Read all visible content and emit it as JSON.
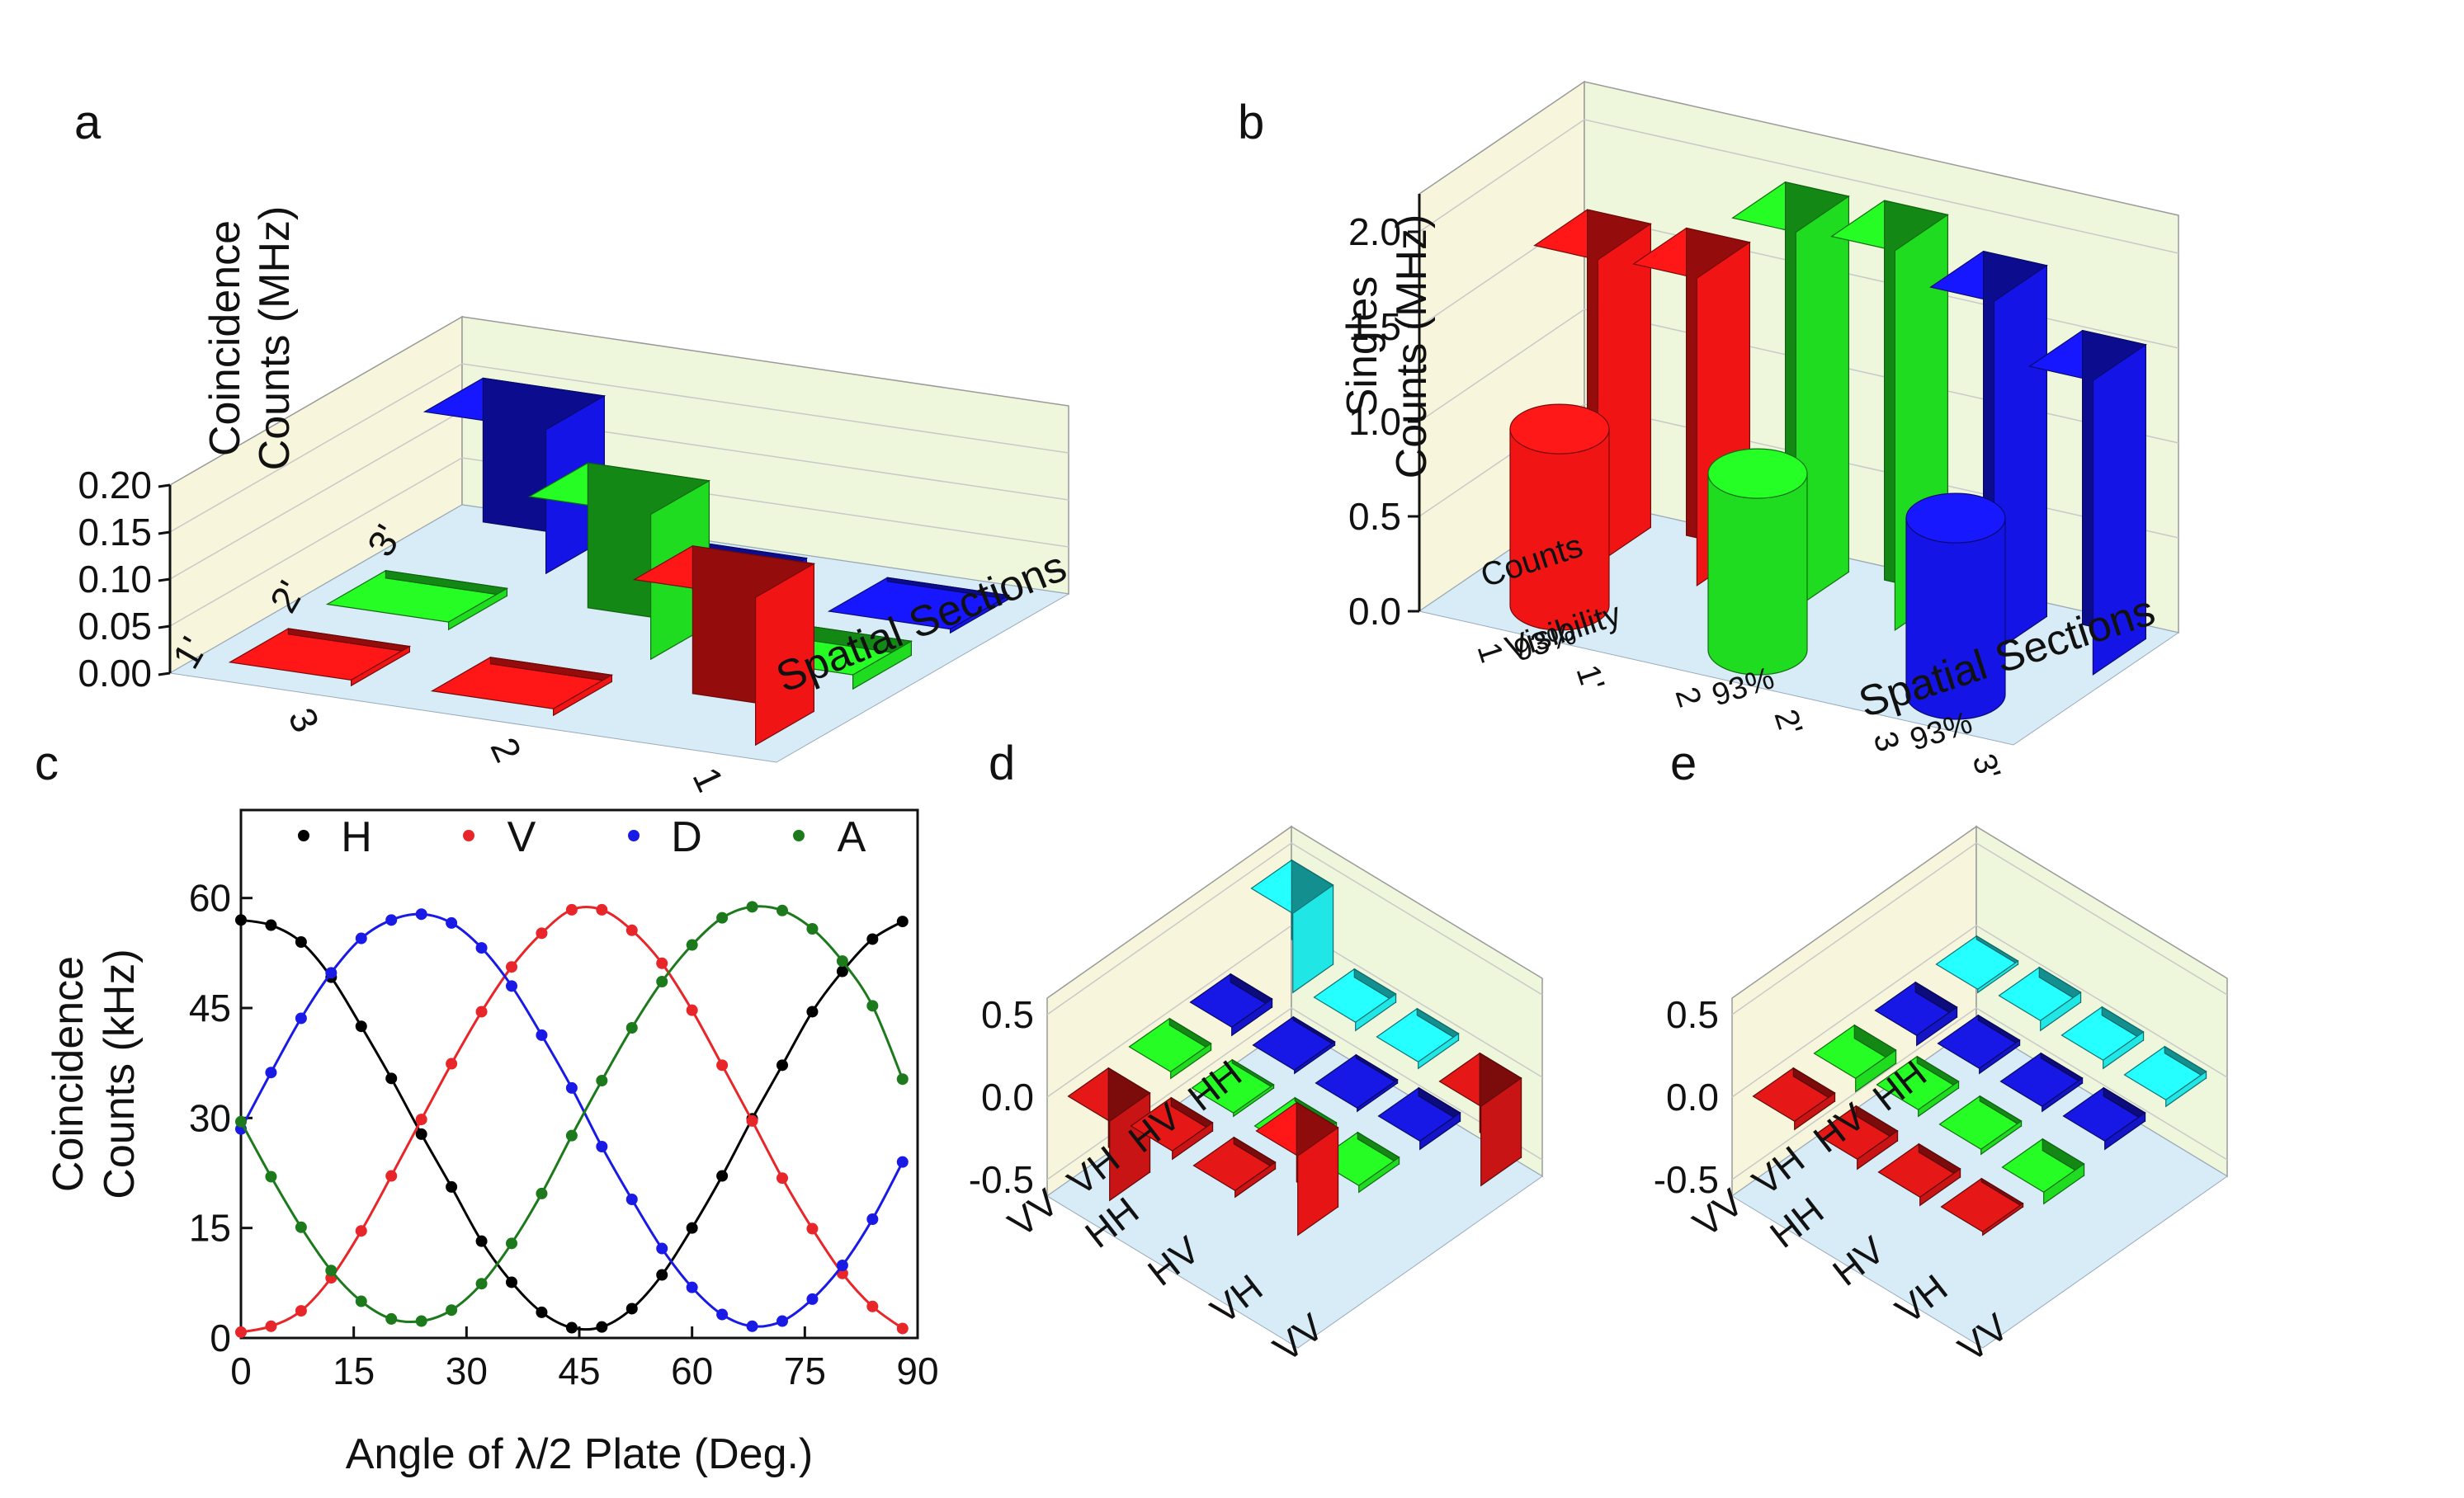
{
  "panel_labels": [
    "a",
    "b",
    "c",
    "d",
    "e"
  ],
  "chart_data": [
    {
      "panel": "a",
      "type": "bar3d",
      "zlabel_line1": "Coincidence",
      "zlabel_line2": "Counts (MHz)",
      "xlabel": "Spatial Sections",
      "zticks": [
        "0.00",
        "0.05",
        "0.10",
        "0.15",
        "0.20"
      ],
      "zlim": [
        0,
        0.2
      ],
      "x_categories": [
        "1",
        "2",
        "3"
      ],
      "y_categories": [
        "3'",
        "2'",
        "1'"
      ],
      "bars": [
        {
          "x": "3",
          "y": "3'",
          "value": 0.153,
          "color": "#1414e6"
        },
        {
          "x": "2",
          "y": "3'",
          "value": 0.012,
          "color": "#1414e6"
        },
        {
          "x": "1",
          "y": "3'",
          "value": 0.004,
          "color": "#1414e6"
        },
        {
          "x": "3",
          "y": "2'",
          "value": 0.008,
          "color": "#20dc20"
        },
        {
          "x": "2",
          "y": "2'",
          "value": 0.154,
          "color": "#20dc20"
        },
        {
          "x": "1",
          "y": "2'",
          "value": 0.015,
          "color": "#20dc20"
        },
        {
          "x": "3",
          "y": "1'",
          "value": 0.006,
          "color": "#f01414"
        },
        {
          "x": "2",
          "y": "1'",
          "value": 0.007,
          "color": "#f01414"
        },
        {
          "x": "1",
          "y": "1'",
          "value": 0.157,
          "color": "#f01414"
        }
      ]
    },
    {
      "panel": "b",
      "type": "bar3d",
      "zlabel_line1": "Singles",
      "zlabel_line2": "Counts (MHz)",
      "xlabel": "Spatial Sections",
      "zticks": [
        "0.0",
        "0.5",
        "1.0",
        "1.5",
        "2.0"
      ],
      "zlim": [
        0,
        2.2
      ],
      "x_categories": [
        "1",
        "1'",
        "2",
        "2'",
        "3",
        "3'"
      ],
      "y_categories": [
        "Counts",
        "Visibility"
      ],
      "bars": [
        {
          "x": "1",
          "y": "Counts",
          "value": 1.6,
          "color": "#f01414"
        },
        {
          "x": "1'",
          "y": "Counts",
          "value": 1.62,
          "color": "#f01414"
        },
        {
          "x": "2",
          "y": "Counts",
          "value": 1.98,
          "color": "#20dc20"
        },
        {
          "x": "2'",
          "y": "Counts",
          "value": 2.0,
          "color": "#20dc20"
        },
        {
          "x": "3",
          "y": "Counts",
          "value": 1.85,
          "color": "#1414e6"
        },
        {
          "x": "3'",
          "y": "Counts",
          "value": 1.55,
          "color": "#1414e6"
        }
      ],
      "visibility": [
        {
          "section": "1",
          "value": "93%",
          "color": "#f01414"
        },
        {
          "section": "2",
          "value": "93%",
          "color": "#20dc20"
        },
        {
          "section": "3",
          "value": "93%",
          "color": "#1414e6"
        }
      ]
    },
    {
      "panel": "c",
      "type": "scatter_with_fit",
      "ylabel_line1": "Coincidence",
      "ylabel_line2": "Counts (kHz)",
      "xlabel": "Angle of λ/2 Plate (Deg.)",
      "xlim": [
        0,
        90
      ],
      "ylim": [
        0,
        72
      ],
      "xticks": [
        0,
        15,
        30,
        45,
        60,
        75,
        90
      ],
      "yticks": [
        0,
        15,
        30,
        45,
        60
      ],
      "x": [
        0,
        4,
        8,
        12,
        16,
        20,
        24,
        28,
        32,
        36,
        40,
        44,
        48,
        52,
        56,
        60,
        64,
        68,
        72,
        76,
        80,
        84,
        88
      ],
      "series": [
        {
          "name": "H",
          "color": "#000000",
          "values": [
            57,
            56.3,
            54,
            49.2,
            42.5,
            35.4,
            27.8,
            20.6,
            13.2,
            7.6,
            3.5,
            1.4,
            1.5,
            4,
            8.6,
            15,
            22.1,
            29.9,
            37.2,
            44.5,
            50,
            54.4,
            56.8
          ]
        },
        {
          "name": "V",
          "color": "#e8262a",
          "values": [
            0.8,
            1.6,
            3.7,
            8.2,
            14.6,
            22.1,
            29.8,
            37.4,
            44.5,
            50.6,
            55.2,
            58.4,
            58.4,
            55.6,
            51.1,
            44.7,
            37.2,
            29.6,
            21.8,
            14.9,
            8.8,
            4.3,
            1.3
          ]
        },
        {
          "name": "D",
          "color": "#1a1ae6",
          "values": [
            28.5,
            36.2,
            43.6,
            49.8,
            54.5,
            57,
            57.8,
            56.6,
            53.2,
            48,
            41.3,
            34.1,
            26.1,
            18.9,
            12.2,
            6.9,
            3.2,
            1.6,
            2.3,
            5.3,
            9.9,
            16.2,
            24
          ]
        },
        {
          "name": "A",
          "color": "#1c7a1c",
          "values": [
            29.5,
            22,
            15.1,
            9.2,
            5,
            2.6,
            2.3,
            3.8,
            7.4,
            12.9,
            19.7,
            27.6,
            35.1,
            42.3,
            48.6,
            53.6,
            57.3,
            58.8,
            58.3,
            55.8,
            51.4,
            45.3,
            35.3
          ]
        }
      ]
    },
    {
      "panel": "d",
      "type": "bar3d_density_matrix",
      "zticks": [
        "-0.5",
        "0.0",
        "0.5"
      ],
      "zlim": [
        -0.6,
        0.6
      ],
      "row_labels": [
        "HH",
        "HV",
        "VH",
        "VV"
      ],
      "col_labels": [
        "HH",
        "HV",
        "VH",
        "VV"
      ],
      "values": [
        [
          0.48,
          0.05,
          0.04,
          -0.48
        ],
        [
          0.05,
          0.02,
          0.02,
          0.05
        ],
        [
          0.04,
          0.02,
          0.02,
          0.04
        ],
        [
          -0.48,
          0.05,
          0.04,
          0.48
        ]
      ]
    },
    {
      "panel": "e",
      "type": "bar3d_density_matrix",
      "zticks": [
        "-0.5",
        "0.0",
        "0.5"
      ],
      "zlim": [
        -0.6,
        0.6
      ],
      "row_labels": [
        "HH",
        "HV",
        "VH",
        "VV"
      ],
      "col_labels": [
        "HH",
        "HV",
        "VH",
        "VV"
      ],
      "values": [
        [
          0.02,
          0.06,
          0.05,
          0.04
        ],
        [
          -0.06,
          0.03,
          0.03,
          0.05
        ],
        [
          -0.08,
          0.04,
          0.03,
          -0.07
        ],
        [
          -0.05,
          -0.06,
          -0.05,
          0.02
        ]
      ]
    }
  ]
}
